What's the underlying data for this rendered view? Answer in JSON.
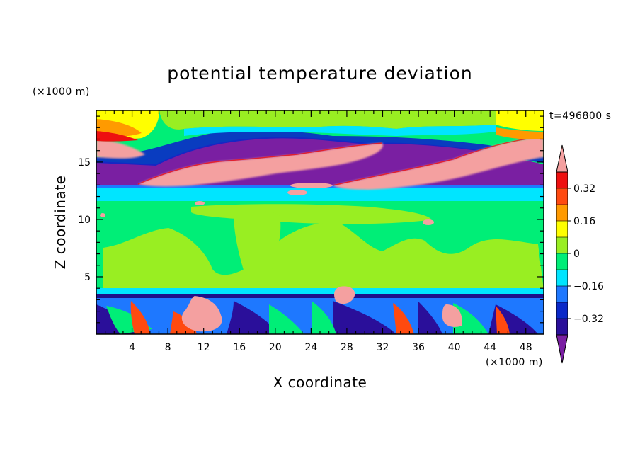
{
  "chart_data": {
    "type": "heatmap",
    "title": "potential temperature deviation",
    "xlabel": "X coordinate",
    "ylabel": "Z coordinate",
    "x_unit": "(×1000 m)",
    "y_unit": "(×1000 m)",
    "time_label": "t=496800 s",
    "xlim": [
      0,
      50
    ],
    "ylim": [
      0,
      19.5
    ],
    "x_ticks": [
      4,
      8,
      12,
      16,
      20,
      24,
      28,
      32,
      36,
      40,
      44,
      48
    ],
    "y_ticks": [
      5,
      10,
      15
    ],
    "colorbar": {
      "levels": [
        -0.4,
        -0.32,
        -0.24,
        -0.16,
        -0.08,
        0,
        0.08,
        0.16,
        0.24,
        0.32,
        0.4
      ],
      "labels": [
        "0.32",
        "0.16",
        "0",
        "−0.16",
        "−0.32"
      ],
      "label_values": [
        0.32,
        0.16,
        0,
        -0.16,
        -0.32
      ],
      "colors": [
        "#7a1fa2",
        "#2a0f9a",
        "#0a28c8",
        "#1e78ff",
        "#00e5ff",
        "#00ee77",
        "#99ee22",
        "#ffff00",
        "#ff9a00",
        "#ff4a10",
        "#ee1010",
        "#f4a0a0"
      ],
      "extend": "both"
    }
  }
}
